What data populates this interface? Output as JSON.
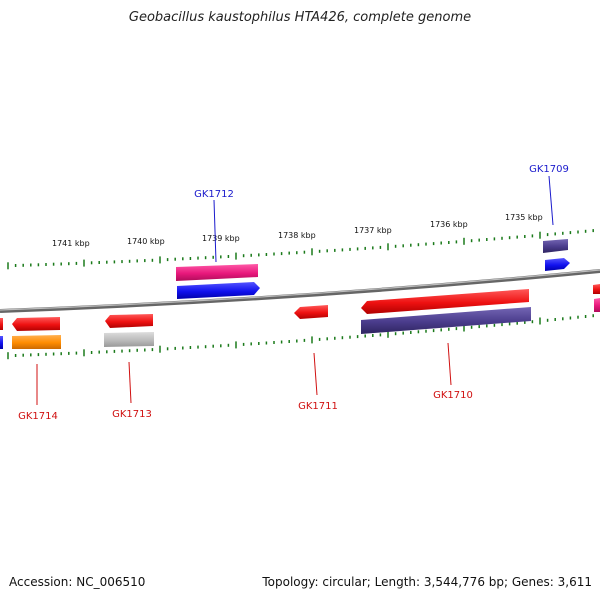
{
  "title": "Geobacillus kaustophilus HTA426, complete genome",
  "footer": {
    "accession": "Accession: NC_006510",
    "summary": "Topology: circular; Length: 3,544,776 bp; Genes: 3,611"
  },
  "colors": {
    "backbone": "#777777",
    "tick": "#1a7a1a",
    "forward_label": "#1a1acc",
    "reverse_label": "#d01010",
    "red": "#ee1111",
    "blue": "#1111ee",
    "pink": "#e8187c",
    "purple": "#4a3c8c",
    "orange": "#ff8c00",
    "gray": "#bbbbbb"
  },
  "scale_labels": [
    "1741 kbp",
    "1740 kbp",
    "1739 kbp",
    "1738 kbp",
    "1737 kbp",
    "1736 kbp",
    "1735 kbp"
  ],
  "gene_labels": [
    {
      "text": "GK1712",
      "strand": "forward"
    },
    {
      "text": "GK1709",
      "strand": "forward"
    },
    {
      "text": "GK1714",
      "strand": "reverse"
    },
    {
      "text": "GK1713",
      "strand": "reverse"
    },
    {
      "text": "GK1711",
      "strand": "reverse"
    },
    {
      "text": "GK1710",
      "strand": "reverse"
    }
  ]
}
